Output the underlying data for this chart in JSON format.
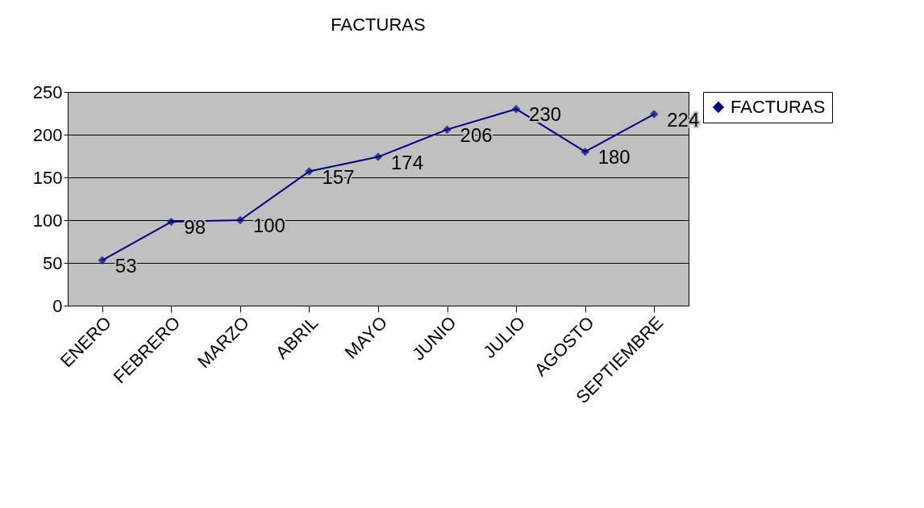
{
  "chart_data": {
    "type": "line",
    "title": "FACTURAS",
    "categories": [
      "ENERO",
      "FEBRERO",
      "MARZO",
      "ABRIL",
      "MAYO",
      "JUNIO",
      "JULIO",
      "AGOSTO",
      "SEPTIEMBRE"
    ],
    "series": [
      {
        "name": "FACTURAS",
        "color": "#000080",
        "values": [
          53,
          98,
          100,
          157,
          174,
          206,
          230,
          180,
          224
        ]
      }
    ],
    "ylim": [
      0,
      250
    ],
    "yticks": [
      0,
      50,
      100,
      150,
      200,
      250
    ],
    "grid": "y",
    "legend": "right",
    "marker": "diamond",
    "line_style": "solid",
    "data_labels": true
  }
}
